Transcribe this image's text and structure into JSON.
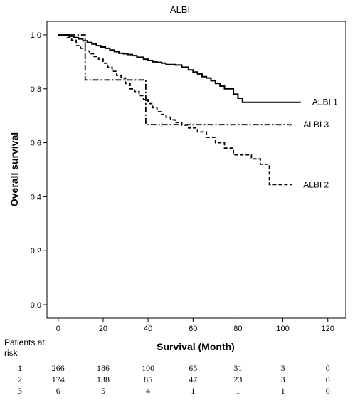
{
  "chart_data": {
    "type": "line",
    "title": "ALBI",
    "xlabel": "Survival (Month)",
    "ylabel": "Overall survival",
    "xlim": [
      -5,
      128
    ],
    "ylim": [
      -0.05,
      1.05
    ],
    "x_ticks": [
      0,
      20,
      40,
      60,
      80,
      100,
      120
    ],
    "y_ticks": [
      0.0,
      0.2,
      0.4,
      0.6,
      0.8,
      1.0
    ],
    "grid": false,
    "series": [
      {
        "name": "ALBI 1",
        "style": "solid",
        "x": [
          0,
          3,
          5,
          7,
          9,
          11,
          13,
          15,
          17,
          19,
          21,
          23,
          25,
          27,
          29,
          31,
          33,
          35,
          38,
          40,
          42,
          44,
          46,
          48,
          50,
          52,
          55,
          58,
          60,
          62,
          64,
          66,
          68,
          70,
          72,
          74,
          76,
          78,
          80,
          82,
          90,
          100,
          108
        ],
        "y": [
          1.0,
          1.0,
          0.995,
          0.99,
          0.985,
          0.978,
          0.972,
          0.966,
          0.96,
          0.955,
          0.95,
          0.944,
          0.938,
          0.932,
          0.93,
          0.927,
          0.923,
          0.917,
          0.91,
          0.905,
          0.9,
          0.898,
          0.895,
          0.89,
          0.89,
          0.888,
          0.88,
          0.87,
          0.862,
          0.855,
          0.845,
          0.84,
          0.83,
          0.82,
          0.81,
          0.8,
          0.8,
          0.78,
          0.765,
          0.75,
          0.75,
          0.75,
          0.75
        ]
      },
      {
        "name": "ALBI 2",
        "style": "dashed",
        "x": [
          0,
          2,
          4,
          6,
          8,
          10,
          12,
          14,
          16,
          18,
          20,
          22,
          24,
          26,
          28,
          30,
          32,
          34,
          36,
          38,
          40,
          42,
          44,
          46,
          48,
          50,
          52,
          55,
          58,
          62,
          66,
          70,
          74,
          78,
          82,
          86,
          90,
          94,
          97,
          100,
          104
        ],
        "y": [
          1.0,
          1.0,
          0.99,
          0.98,
          0.96,
          0.95,
          0.94,
          0.93,
          0.92,
          0.91,
          0.895,
          0.88,
          0.865,
          0.85,
          0.84,
          0.82,
          0.8,
          0.79,
          0.775,
          0.76,
          0.745,
          0.73,
          0.715,
          0.705,
          0.695,
          0.685,
          0.675,
          0.665,
          0.655,
          0.64,
          0.62,
          0.6,
          0.58,
          0.555,
          0.555,
          0.54,
          0.52,
          0.445,
          0.445,
          0.445,
          0.445
        ]
      },
      {
        "name": "ALBI 3",
        "style": "dash-dot",
        "x": [
          0,
          6,
          12,
          39,
          104
        ],
        "y": [
          1.0,
          1.0,
          0.833,
          0.667,
          0.667
        ]
      }
    ],
    "risk_table": {
      "heading": "Patients at risk",
      "times": [
        "0",
        "20",
        "40",
        "60",
        "80",
        "100",
        "120"
      ],
      "rows": [
        {
          "group": "1",
          "counts": [
            "266",
            "186",
            "100",
            "65",
            "31",
            "3",
            "0"
          ]
        },
        {
          "group": "2",
          "counts": [
            "174",
            "138",
            "85",
            "47",
            "23",
            "3",
            "0"
          ]
        },
        {
          "group": "3",
          "counts": [
            "6",
            "5",
            "4",
            "1",
            "1",
            "1",
            "0"
          ]
        }
      ]
    },
    "colors": {
      "lines": "#000000",
      "censor_marks": "#c8c89a"
    }
  }
}
